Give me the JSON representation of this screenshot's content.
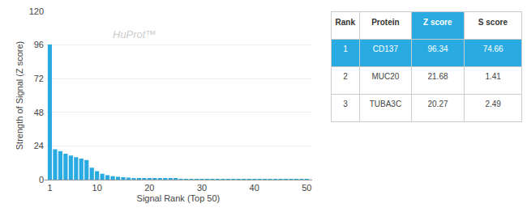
{
  "chart_data": {
    "type": "bar",
    "xlabel": "Signal Rank (Top 50)",
    "ylabel": "Strength of Signal (Z score)",
    "x": [
      1,
      2,
      3,
      4,
      5,
      6,
      7,
      8,
      9,
      10,
      11,
      12,
      13,
      14,
      15,
      16,
      17,
      18,
      19,
      20,
      21,
      22,
      23,
      24,
      25,
      26,
      27,
      28,
      29,
      30,
      31,
      32,
      33,
      34,
      35,
      36,
      37,
      38,
      39,
      40,
      41,
      42,
      43,
      44,
      45,
      46,
      47,
      48,
      49,
      50
    ],
    "values": [
      96.34,
      21.68,
      20.27,
      18.5,
      17.2,
      16.0,
      15.0,
      14.0,
      8.5,
      6.0,
      4.2,
      3.2,
      2.5,
      2.0,
      1.7,
      1.4,
      1.2,
      1.05,
      0.95,
      0.88,
      0.82,
      0.77,
      0.72,
      0.67,
      0.62,
      0.57,
      0.52,
      0.5,
      0.47,
      0.44,
      0.42,
      0.4,
      0.38,
      0.36,
      0.33,
      0.31,
      0.29,
      0.27,
      0.25,
      0.23,
      0.21,
      0.19,
      0.17,
      0.15,
      0.13,
      0.11,
      0.1,
      0.09,
      0.08,
      0.07
    ],
    "color": "#29ABE2",
    "xlim": [
      0.0,
      51
    ],
    "xticks": [
      1,
      10,
      20,
      30,
      40,
      50
    ],
    "ylim": [
      0,
      120
    ],
    "yticks": [
      0,
      24,
      48,
      72,
      96,
      120
    ],
    "grid": true,
    "annotations": [
      "HuProt™"
    ],
    "table": {
      "headers": [
        "Rank",
        "Protein",
        "Z score",
        "S score"
      ],
      "rows": [
        [
          "1",
          "CD137",
          "96.34",
          "74.66"
        ],
        [
          "2",
          "MUC20",
          "21.68",
          "1.41"
        ],
        [
          "3",
          "TUBA3C",
          "20.27",
          "2.49"
        ]
      ]
    }
  }
}
